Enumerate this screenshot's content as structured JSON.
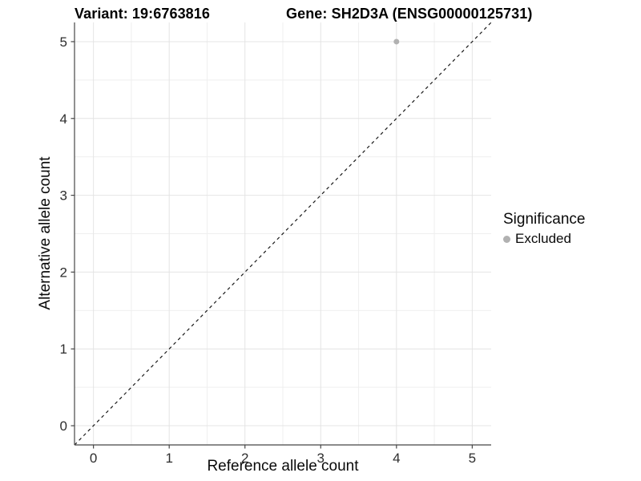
{
  "titles": {
    "variant": "Variant: 19:6763816",
    "gene": "Gene: SH2D3A (ENSG00000125731)"
  },
  "axes": {
    "x_label": "Reference allele count",
    "y_label": "Alternative allele count"
  },
  "legend": {
    "title": "Significance",
    "entries": [
      {
        "label": "Excluded",
        "color": "#b1b1b1"
      }
    ],
    "position": "right"
  },
  "colors": {
    "background": "#ffffff",
    "grid_major": "#e4e4e4",
    "grid_minor": "#efefef",
    "axis_line": "#464646",
    "tick_label": "#2e2e2e",
    "identity_line": "#1a1a1a",
    "point": "#b1b1b1"
  },
  "chart_data": {
    "type": "scatter",
    "title": "Variant: 19:6763816   Gene: SH2D3A (ENSG00000125731)",
    "xlabel": "Reference allele count",
    "ylabel": "Alternative allele count",
    "xlim": [
      -0.25,
      5.25
    ],
    "ylim": [
      -0.25,
      5.25
    ],
    "x_ticks": [
      0,
      1,
      2,
      3,
      4,
      5
    ],
    "y_ticks": [
      0,
      1,
      2,
      3,
      4,
      5
    ],
    "x_minor_ticks": [
      0.5,
      1.5,
      2.5,
      3.5,
      4.5
    ],
    "y_minor_ticks": [
      0.5,
      1.5,
      2.5,
      3.5,
      4.5
    ],
    "grid": "major+minor",
    "series": [
      {
        "name": "Excluded",
        "color": "#b1b1b1",
        "points": [
          {
            "x": 4,
            "y": 5
          }
        ]
      }
    ],
    "reference_line": {
      "type": "identity",
      "slope": 1,
      "intercept": 0,
      "style": "dashed",
      "color": "#1a1a1a"
    },
    "legend_position": "right"
  }
}
